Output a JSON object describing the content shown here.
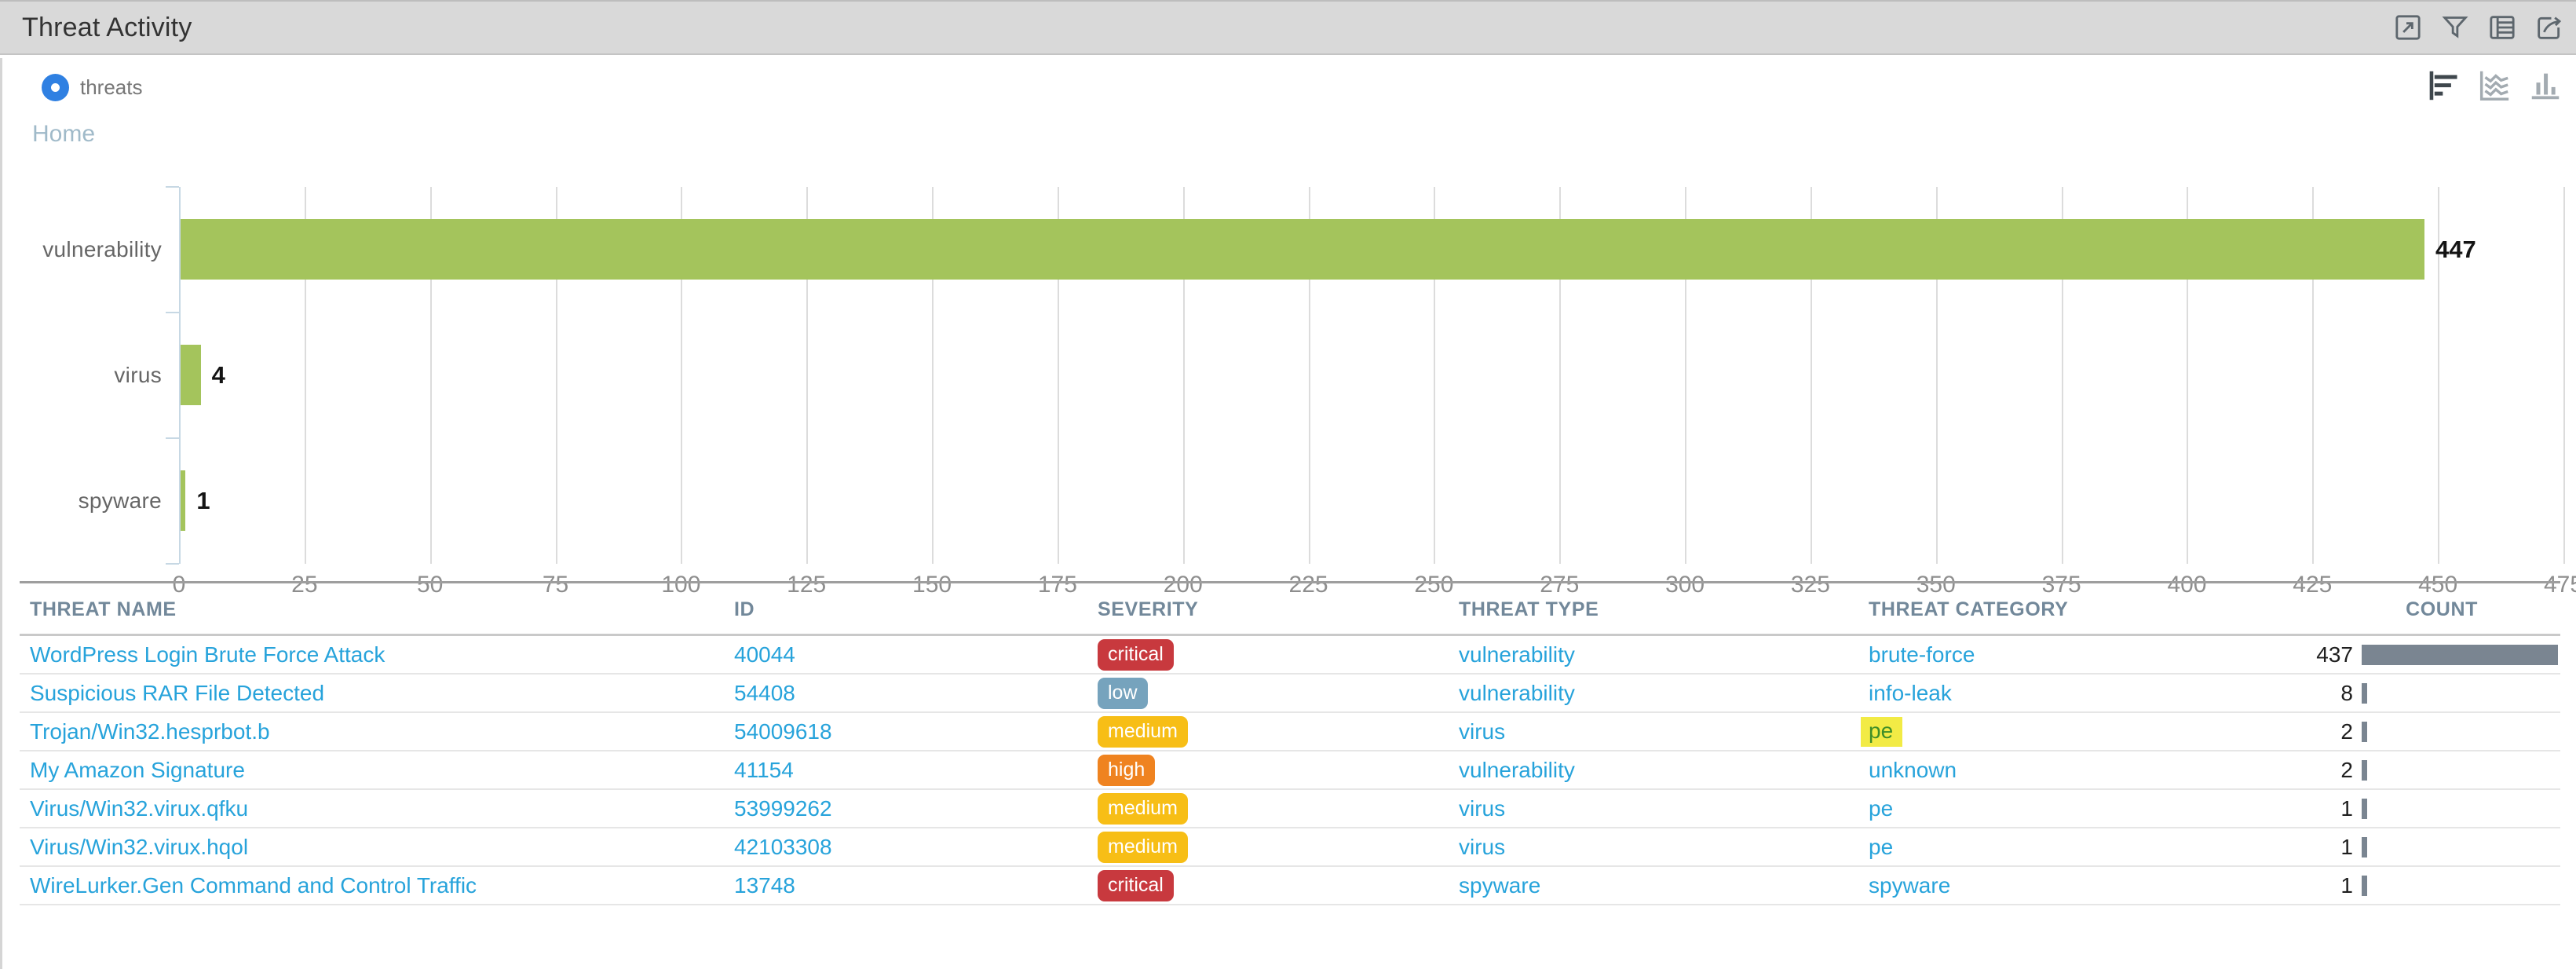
{
  "titlebar": {
    "title": "Threat Activity",
    "icons": [
      {
        "name": "maximize-icon"
      },
      {
        "name": "filter-icon"
      },
      {
        "name": "table-view-icon"
      },
      {
        "name": "export-icon"
      }
    ]
  },
  "toolbar": {
    "radio_label": "threats",
    "radio_selected": true,
    "chart_type_icons": [
      "horizontal-bar-chart",
      "area-chart",
      "column-chart"
    ],
    "active_chart_type": "horizontal-bar-chart"
  },
  "breadcrumb": {
    "home": "Home"
  },
  "chart_data": {
    "type": "bar",
    "orientation": "horizontal",
    "title": "",
    "xlabel": "",
    "ylabel": "",
    "categories": [
      "vulnerability",
      "virus",
      "spyware"
    ],
    "values": [
      447,
      4,
      1
    ],
    "xlim": [
      0,
      475
    ],
    "tick_step": 25,
    "x_ticks": [
      0,
      25,
      50,
      75,
      100,
      125,
      150,
      175,
      200,
      225,
      250,
      275,
      300,
      325,
      350,
      375,
      400,
      425,
      450,
      475
    ],
    "grid": true,
    "bar_color": "#a4c45c",
    "value_labels": [
      "447",
      "4",
      "1"
    ]
  },
  "table": {
    "columns": [
      "THREAT NAME",
      "ID",
      "SEVERITY",
      "THREAT TYPE",
      "THREAT CATEGORY",
      "COUNT"
    ],
    "max_count": 437,
    "rows": [
      {
        "name": "WordPress Login Brute Force Attack",
        "id": "40044",
        "severity": "critical",
        "type": "vulnerability",
        "category": "brute-force",
        "category_highlight": false,
        "count": 437
      },
      {
        "name": "Suspicious RAR File Detected",
        "id": "54408",
        "severity": "low",
        "type": "vulnerability",
        "category": "info-leak",
        "category_highlight": false,
        "count": 8
      },
      {
        "name": "Trojan/Win32.hesprbot.b",
        "id": "54009618",
        "severity": "medium",
        "type": "virus",
        "category": "pe",
        "category_highlight": true,
        "count": 2
      },
      {
        "name": "My Amazon Signature",
        "id": "41154",
        "severity": "high",
        "type": "vulnerability",
        "category": "unknown",
        "category_highlight": false,
        "count": 2
      },
      {
        "name": "Virus/Win32.virux.qfku",
        "id": "53999262",
        "severity": "medium",
        "type": "virus",
        "category": "pe",
        "category_highlight": false,
        "count": 1
      },
      {
        "name": "Virus/Win32.virux.hqol",
        "id": "42103308",
        "severity": "medium",
        "type": "virus",
        "category": "pe",
        "category_highlight": false,
        "count": 1
      },
      {
        "name": "WireLurker.Gen Command and Control Traffic",
        "id": "13748",
        "severity": "critical",
        "type": "spyware",
        "category": "spyware",
        "category_highlight": false,
        "count": 1
      }
    ]
  },
  "colors": {
    "bar_green": "#a4c45c",
    "link_blue": "#27a3db",
    "count_bar_gray": "#7a8591",
    "severity": {
      "critical": "#c8393e",
      "low": "#76a3bd",
      "medium": "#f7be16",
      "high": "#ef8320"
    },
    "highlight_bg": "#f2eb45",
    "highlight_text": "#3e8e28",
    "titlebar_bg": "#d9d9d9"
  }
}
